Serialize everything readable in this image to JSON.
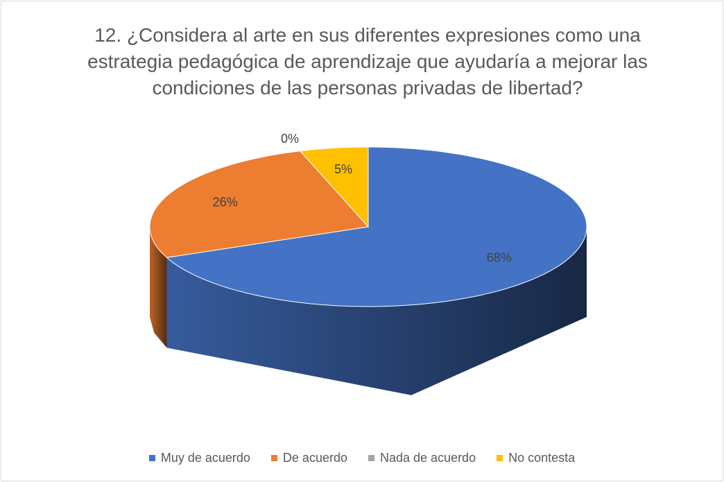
{
  "chart_data": {
    "type": "pie",
    "title": "12. ¿Considera al arte en sus diferentes expresiones como una estrategia pedagógica de aprendizaje que ayudaría a mejorar las condiciones de las personas privadas de libertad?",
    "categories": [
      "Muy de acuerdo",
      "De acuerdo",
      "Nada de acuerdo",
      "No contesta"
    ],
    "values": [
      68,
      26,
      0,
      5
    ],
    "value_labels": [
      "68%",
      "26%",
      "0%",
      "5%"
    ],
    "colors": [
      "#4472c4",
      "#ed7d31",
      "#a5a5a5",
      "#ffc000"
    ],
    "legend": "bottom"
  }
}
